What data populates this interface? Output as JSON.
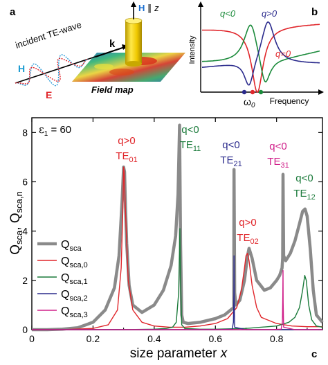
{
  "panel_labels": {
    "a": "a",
    "b": "b",
    "c": "c"
  },
  "panel_a": {
    "incident_label": "incident TE-wave",
    "h_label": "H",
    "e_label": "E",
    "k_label": "k",
    "h_axis_label": "H",
    "h_axis_suffix": "∥ z",
    "field_map_label": "Field map"
  },
  "panel_b": {
    "ylabel": "Intensity",
    "xlabel": "Frequency",
    "omega_label": "ω",
    "omega_sub": "0",
    "q_neg_label": "q<0",
    "q_pos_label": "q>0",
    "q_zero_label": "q=0",
    "colors": {
      "q_neg": "#1a8a3a",
      "q_pos": "#2a2a8c",
      "q_zero": "#e0252a"
    }
  },
  "chart_data": {
    "type": "line",
    "title": "",
    "eps_label": "ε",
    "eps_sub": "1",
    "eps_value": " = 60",
    "xlabel": "size parameter ",
    "xlabel_var": "x",
    "ylabel_1": "Q",
    "ylabel_1_sub": "sca",
    "ylabel_2": "Q",
    "ylabel_2_sub": "sca,n",
    "xlim": [
      0,
      0.95
    ],
    "ylim": [
      0,
      8.6
    ],
    "xticks": [
      "0",
      "0.2",
      "0.4",
      "0.6",
      "0.8"
    ],
    "xtick_values": [
      0,
      0.2,
      0.4,
      0.6,
      0.8
    ],
    "yticks": [
      "0",
      "2",
      "4",
      "6",
      "8"
    ],
    "ytick_values": [
      0,
      2,
      4,
      6,
      8
    ],
    "legend_placement": "left",
    "series": [
      {
        "name": "Q",
        "name_sub": "sca",
        "color": "#8a8a8a",
        "x": [
          0.0,
          0.05,
          0.1,
          0.15,
          0.2,
          0.24,
          0.27,
          0.285,
          0.295,
          0.3,
          0.303,
          0.306,
          0.31,
          0.318,
          0.33,
          0.36,
          0.4,
          0.43,
          0.455,
          0.47,
          0.478,
          0.483,
          0.486,
          0.49,
          0.495,
          0.51,
          0.55,
          0.6,
          0.63,
          0.65,
          0.66,
          0.661,
          0.663,
          0.667,
          0.68,
          0.695,
          0.705,
          0.71,
          0.72,
          0.735,
          0.76,
          0.78,
          0.8,
          0.81,
          0.818,
          0.82,
          0.821,
          0.823,
          0.83,
          0.845,
          0.86,
          0.875,
          0.885,
          0.893,
          0.9,
          0.91,
          0.92,
          0.93,
          0.95
        ],
        "y": [
          0.0,
          0.0,
          0.02,
          0.08,
          0.3,
          0.8,
          1.7,
          3.0,
          5.2,
          6.6,
          6.4,
          5.0,
          3.5,
          1.8,
          1.0,
          0.7,
          1.0,
          1.6,
          2.6,
          3.8,
          5.5,
          8.3,
          3.5,
          0.6,
          0.3,
          0.25,
          0.3,
          0.45,
          0.6,
          0.8,
          0.9,
          6.5,
          1.5,
          1.0,
          1.2,
          2.0,
          3.0,
          3.3,
          2.9,
          2.0,
          1.6,
          1.7,
          2.0,
          2.2,
          2.5,
          2.9,
          6.3,
          3.0,
          2.8,
          3.1,
          3.6,
          4.3,
          4.8,
          4.9,
          4.6,
          3.3,
          1.6,
          0.6,
          0.3
        ]
      },
      {
        "name": "Q",
        "name_sub": "sca,0",
        "color": "#e0252a",
        "x": [
          0.0,
          0.1,
          0.2,
          0.25,
          0.28,
          0.292,
          0.298,
          0.3,
          0.302,
          0.306,
          0.315,
          0.33,
          0.36,
          0.4,
          0.45,
          0.5,
          0.55,
          0.6,
          0.64,
          0.67,
          0.685,
          0.695,
          0.7,
          0.705,
          0.71,
          0.72,
          0.735,
          0.75,
          0.8,
          0.85,
          0.9,
          0.95
        ],
        "y": [
          0.0,
          0.0,
          0.05,
          0.2,
          0.8,
          2.5,
          5.0,
          6.6,
          6.4,
          4.8,
          2.0,
          0.8,
          0.3,
          0.15,
          0.1,
          0.1,
          0.15,
          0.25,
          0.45,
          0.9,
          1.6,
          2.5,
          3.0,
          3.1,
          2.8,
          1.8,
          0.9,
          0.5,
          0.25,
          0.15,
          0.12,
          0.12
        ]
      },
      {
        "name": "Q",
        "name_sub": "sca,1",
        "color": "#1a7a3a",
        "x": [
          0.0,
          0.2,
          0.3,
          0.4,
          0.44,
          0.46,
          0.472,
          0.48,
          0.484,
          0.486,
          0.49,
          0.5,
          0.55,
          0.6,
          0.7,
          0.8,
          0.84,
          0.86,
          0.875,
          0.885,
          0.892,
          0.897,
          0.905,
          0.915,
          0.93,
          0.95
        ],
        "y": [
          0.0,
          0.0,
          0.0,
          0.02,
          0.05,
          0.1,
          0.3,
          1.5,
          4.1,
          2.0,
          0.2,
          0.05,
          0.02,
          0.02,
          0.05,
          0.15,
          0.3,
          0.5,
          0.9,
          1.6,
          2.2,
          2.0,
          1.0,
          0.4,
          0.15,
          0.1
        ]
      },
      {
        "name": "Q",
        "name_sub": "sca,2",
        "color": "#2a2a8c",
        "x": [
          0.0,
          0.6,
          0.655,
          0.659,
          0.6605,
          0.661,
          0.6615,
          0.663,
          0.7,
          0.95
        ],
        "y": [
          0.0,
          0.0,
          0.02,
          0.3,
          1.5,
          3.0,
          1.2,
          0.1,
          0.0,
          0.0
        ]
      },
      {
        "name": "Q",
        "name_sub": "sca,3",
        "color": "#d0208a",
        "x": [
          0.0,
          0.78,
          0.815,
          0.819,
          0.8205,
          0.821,
          0.8215,
          0.823,
          0.86,
          0.95
        ],
        "y": [
          0.0,
          0.0,
          0.02,
          0.3,
          1.4,
          2.4,
          1.1,
          0.1,
          0.0,
          0.0
        ]
      }
    ],
    "annotations": [
      {
        "line1": "q>0",
        "mode": "TE",
        "sub": "01",
        "color": "#e0252a",
        "x": 0.3
      },
      {
        "line1": "q<0",
        "mode": "TE",
        "sub": "11",
        "color": "#1a7a3a",
        "x": 0.486
      },
      {
        "line1": "q<0",
        "mode": "TE",
        "sub": "21",
        "color": "#2a2a8c",
        "x": 0.661
      },
      {
        "line1": "q>0",
        "mode": "TE",
        "sub": "02",
        "color": "#e0252a",
        "x": 0.705
      },
      {
        "line1": "q<0",
        "mode": "TE",
        "sub": "31",
        "color": "#d0208a",
        "x": 0.821
      },
      {
        "line1": "q<0",
        "mode": "TE",
        "sub": "12",
        "color": "#1a7a3a",
        "x": 0.893
      }
    ]
  }
}
